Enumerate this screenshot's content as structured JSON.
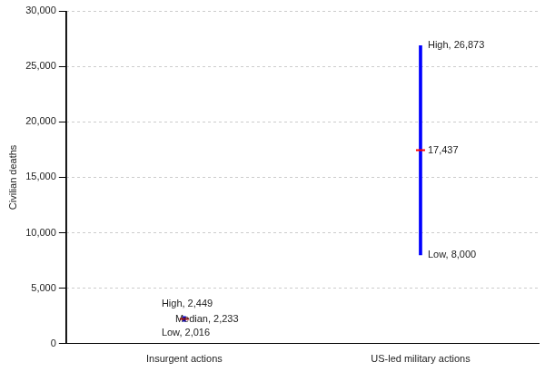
{
  "chart_data": {
    "type": "range",
    "y_label": "Civilian deaths",
    "categories": [
      "Insurgent actions",
      "US-led military actions"
    ],
    "low": [
      2016,
      8000
    ],
    "median": [
      2233,
      17437
    ],
    "high": [
      2449,
      26873
    ],
    "low_labels": [
      "Low, 2,016",
      "Low, 8,000"
    ],
    "median_labels": [
      "Median, 2,233",
      "17,437"
    ],
    "high_labels": [
      "High, 2,449",
      "High, 26,873"
    ],
    "color": "#0000ff",
    "ylim": [
      0,
      30000
    ],
    "yticks": [
      0,
      {
        "value": 5000,
        "label": "5,000"
      },
      {
        "value": 10000,
        "label": "10,000"
      },
      {
        "value": 15000,
        "label": "15,000"
      },
      {
        "value": 20000,
        "label": "20,000"
      },
      {
        "value": 25000,
        "label": "25,000"
      },
      {
        "value": 30000,
        "label": "30,000"
      }
    ],
    "grid": true,
    "data_labels": true
  }
}
